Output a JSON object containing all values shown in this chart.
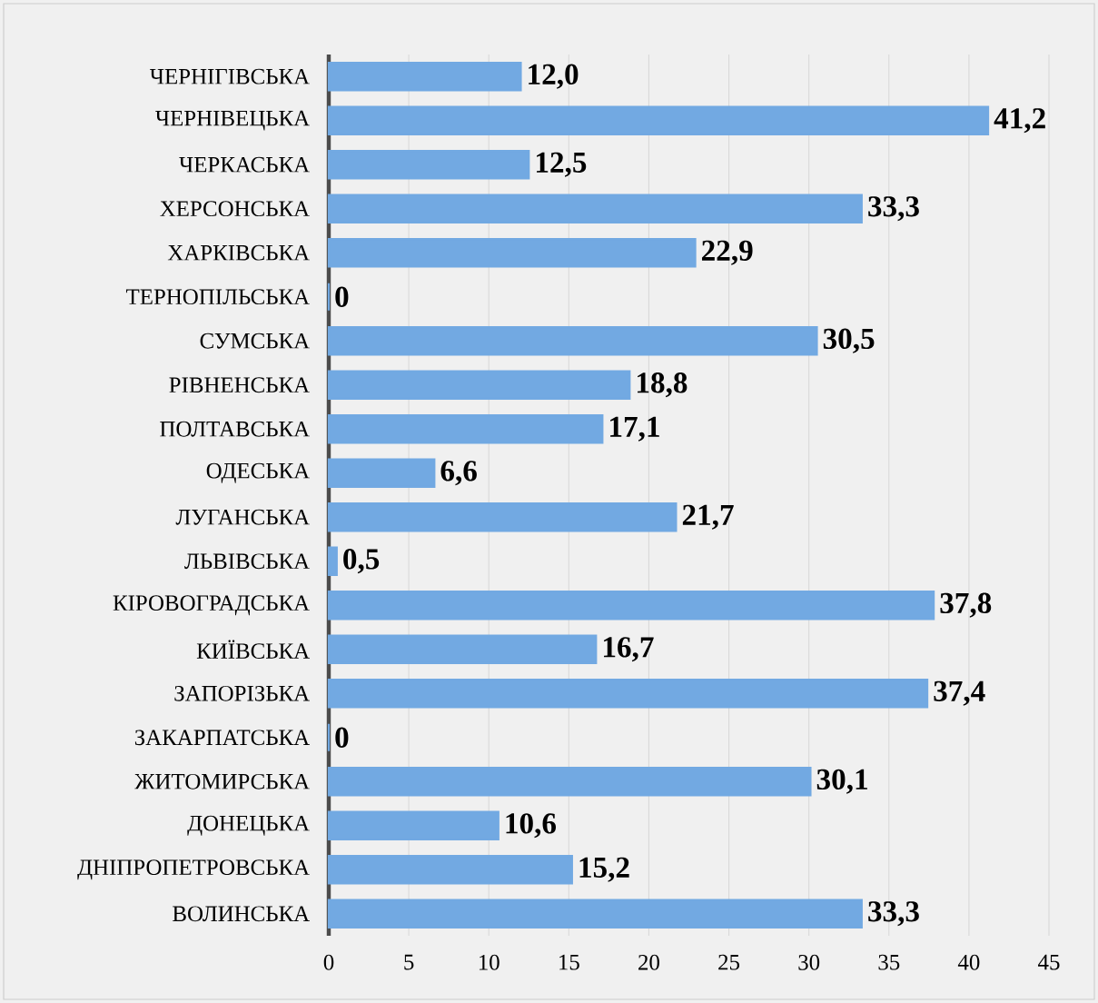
{
  "chart_data": {
    "type": "bar",
    "orientation": "horizontal",
    "categories": [
      "ЧЕРНІГІВСЬКА",
      "ЧЕРНІВЕЦЬКА",
      "ЧЕРКАСЬКА",
      "ХЕРСОНСЬКА",
      "ХАРКІВСЬКА",
      "ТЕРНОПІЛЬСЬКА",
      "СУМСЬКА",
      "РІВНЕНСЬКА",
      "ПОЛТАВСЬКА",
      "ОДЕСЬКА",
      "ЛУГАНСЬКА",
      "ЛЬВІВСЬКА",
      "КІРОВОГРАДСЬКА",
      "КИЇВСЬКА",
      "ЗАПОРІЗЬКА",
      "ЗАКАРПАТСЬКА",
      "ЖИТОМИРСЬКА",
      "ДОНЕЦЬКА",
      "ДНІПРОПЕТРОВСЬКА",
      "ВОЛИНСЬКА"
    ],
    "values": [
      12.0,
      41.2,
      12.5,
      33.3,
      22.9,
      0,
      30.5,
      18.8,
      17.1,
      6.6,
      21.7,
      0.5,
      37.8,
      16.7,
      37.4,
      0,
      30.1,
      10.6,
      15.2,
      33.3
    ],
    "value_labels": [
      "12,0",
      "41,2",
      "12,5",
      "33,3",
      "22,9",
      "0",
      "30,5",
      "18,8",
      "17,1",
      "6,6",
      "21,7",
      "0,5",
      "37,8",
      "16,7",
      "37,4",
      "0",
      "30,1",
      "10,6",
      "15,2",
      "33,3"
    ],
    "color": "#72a9e2",
    "xlim": [
      0,
      45
    ],
    "xticks": [
      0,
      5,
      10,
      15,
      20,
      25,
      30,
      35,
      40,
      45
    ],
    "grid": "x"
  }
}
